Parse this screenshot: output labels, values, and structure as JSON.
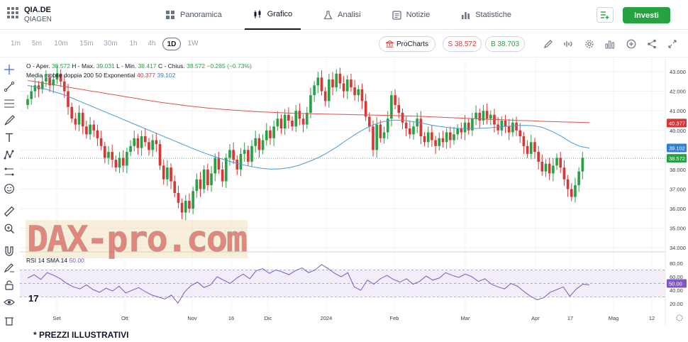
{
  "header": {
    "ticker": "QIA.DE",
    "company": "QIAGEN",
    "tabs": [
      {
        "label": "Panoramica",
        "icon": "grid-icon"
      },
      {
        "label": "Grafico",
        "icon": "candles-icon",
        "active": true
      },
      {
        "label": "Analisi",
        "icon": "flask-icon"
      },
      {
        "label": "Notizie",
        "icon": "news-icon"
      },
      {
        "label": "Statistiche",
        "icon": "stats-icon"
      }
    ],
    "invest_label": "Investi"
  },
  "toolbar": {
    "timeframes": [
      "1m",
      "5m",
      "10m",
      "15m",
      "30m",
      "1h",
      "4h",
      "1D",
      "1W"
    ],
    "active_timeframe": "1D",
    "procharts_label": "ProCharts",
    "sell_label": "S 38.572",
    "buy_label": "B 38.703"
  },
  "legend": {
    "ohlc_prefix": "O - Aper.",
    "open": "38.572",
    "high_prefix": "H - Max.",
    "high": "39.031",
    "low_prefix": "L - Min.",
    "low": "38.417",
    "close_prefix": "C - Chius.",
    "close": "38.572",
    "change": "−0.285 (−0.73%)",
    "ma_label": "Media mobile doppia 200 50 Exponential",
    "ma200": "40.377",
    "ma50": "39.102",
    "rsi_label": "RSI 14 SMA 14",
    "rsi_value": "50.00"
  },
  "colors": {
    "up": "#27a243",
    "down": "#d93636",
    "ma200": "#d9534f",
    "ma50": "#4a9ad8",
    "rsi": "#7e57c2",
    "accent": "#27a243"
  },
  "watermark": "DAX-pro.com",
  "footnote": "* PREZZI ILLUSTRATIVI",
  "chart_data": {
    "type": "candlestick",
    "price_axis": {
      "ticks": [
        "43.000",
        "42.000",
        "41.000",
        "40.000",
        "39.000",
        "38.000",
        "37.000",
        "36.000",
        "35.000",
        "34.000"
      ],
      "ylim": [
        33.9,
        43.4
      ]
    },
    "price_badges": [
      {
        "label": "40.377",
        "value": 40.377,
        "color": "#d93636"
      },
      {
        "label": "39.102",
        "value": 39.102,
        "color": "#2f7fd6"
      },
      {
        "label": "38.572",
        "value": 38.572,
        "color": "#27a243"
      }
    ],
    "rsi_axis": {
      "ticks": [
        "80.00",
        "60.00",
        "40.00",
        "20.00"
      ],
      "ylim": [
        16,
        82
      ],
      "badge": "50.00"
    },
    "time_labels": [
      "Set",
      "Ott",
      "Nov",
      "16",
      "Dic",
      "2024",
      "Feb",
      "Mar",
      "Apr",
      "17",
      "Mag",
      "12"
    ],
    "close": [
      41.6,
      42.0,
      42.3,
      42.1,
      42.5,
      42.7,
      42.3,
      42.6,
      42.9,
      42.5,
      42.0,
      41.2,
      40.6,
      40.3,
      40.9,
      40.2,
      39.8,
      40.3,
      40.0,
      39.6,
      39.2,
      38.6,
      38.9,
      38.5,
      38.1,
      38.6,
      38.2,
      38.9,
      39.2,
      39.6,
      39.1,
      39.7,
      39.4,
      39.0,
      39.5,
      39.3,
      38.2,
      37.5,
      38.1,
      37.4,
      36.8,
      36.3,
      35.8,
      36.4,
      36.0,
      36.9,
      37.5,
      37.0,
      38.0,
      37.2,
      37.8,
      38.6,
      38.0,
      37.4,
      38.6,
      39.0,
      38.5,
      38.0,
      38.8,
      39.0,
      38.4,
      39.2,
      39.6,
      39.0,
      39.5,
      40.0,
      39.6,
      40.2,
      40.6,
      40.1,
      40.8,
      40.5,
      40.2,
      41.0,
      40.6,
      40.3,
      40.9,
      41.8,
      42.3,
      42.7,
      42.0,
      41.5,
      42.6,
      42.2,
      42.9,
      42.4,
      42.0,
      42.6,
      42.2,
      41.8,
      42.1,
      41.5,
      40.7,
      40.2,
      39.0,
      40.3,
      39.6,
      39.9,
      40.6,
      41.8,
      41.3,
      40.9,
      40.4,
      40.1,
      39.8,
      40.2,
      40.6,
      39.7,
      39.4,
      39.9,
      39.5,
      39.2,
      39.6,
      39.4,
      39.9,
      39.5,
      39.8,
      40.1,
      39.9,
      40.4,
      40.0,
      40.6,
      40.9,
      40.5,
      41.0,
      40.6,
      40.8,
      40.3,
      40.0,
      40.5,
      40.2,
      39.9,
      40.4,
      40.0,
      39.7,
      39.2,
      38.8,
      39.4,
      38.9,
      38.4,
      37.9,
      38.3,
      37.8,
      38.2,
      38.6,
      38.1,
      37.5,
      37.0,
      36.6,
      37.2,
      37.9,
      38.6
    ],
    "series": [
      {
        "name": "200",
        "values": [
          42.55,
          42.48,
          42.4,
          42.33,
          42.25,
          42.17,
          42.1,
          42.02,
          41.95,
          41.87,
          41.8,
          41.72,
          41.65,
          41.57,
          41.5,
          41.43,
          41.37,
          41.31,
          41.25,
          41.2,
          41.15,
          41.11,
          41.07,
          41.04,
          41.01,
          40.98,
          40.95,
          40.93,
          40.91,
          40.89,
          40.87,
          40.86,
          40.85,
          40.84,
          40.83,
          40.82,
          40.81,
          40.8,
          40.79,
          40.78,
          40.77,
          40.76,
          40.74,
          40.73,
          40.72,
          40.7,
          40.68,
          40.66,
          40.64,
          40.62,
          40.6,
          40.58,
          40.56,
          40.55,
          40.53,
          40.51,
          40.5,
          40.48,
          40.46,
          40.45,
          40.43,
          40.42,
          40.41,
          40.4
        ]
      },
      {
        "name": "50",
        "values": [
          42.3,
          42.2,
          42.1,
          41.95,
          41.8,
          41.6,
          41.4,
          41.2,
          41.0,
          40.8,
          40.6,
          40.4,
          40.2,
          40.0,
          39.8,
          39.6,
          39.4,
          39.2,
          39.0,
          38.82,
          38.66,
          38.5,
          38.36,
          38.24,
          38.14,
          38.06,
          38.02,
          38.04,
          38.1,
          38.22,
          38.4,
          38.6,
          38.85,
          39.15,
          39.48,
          39.8,
          40.08,
          40.3,
          40.45,
          40.52,
          40.52,
          40.46,
          40.38,
          40.28,
          40.2,
          40.14,
          40.1,
          40.1,
          40.1,
          40.12,
          40.16,
          40.2,
          40.24,
          40.26,
          40.24,
          40.15,
          39.95,
          39.7,
          39.4,
          39.18,
          39.1
        ]
      },
      {
        "name": "RSI",
        "values": [
          58,
          63,
          56,
          66,
          62,
          57,
          50,
          45,
          42,
          48,
          41,
          37,
          43,
          39,
          46,
          36,
          40,
          44,
          38,
          33,
          30,
          27,
          33,
          21,
          37,
          47,
          52,
          44,
          48,
          60,
          55,
          50,
          58,
          64,
          57,
          69,
          72,
          65,
          70,
          67,
          63,
          69,
          73,
          66,
          70,
          78,
          72,
          65,
          60,
          66,
          45,
          40,
          55,
          49,
          57,
          62,
          56,
          52,
          57,
          49,
          53,
          61,
          55,
          58,
          66,
          62,
          59,
          64,
          60,
          53,
          57,
          49,
          45,
          42,
          50,
          46,
          38,
          31,
          26,
          29,
          37,
          41,
          45,
          31,
          42,
          49,
          48
        ]
      }
    ]
  }
}
